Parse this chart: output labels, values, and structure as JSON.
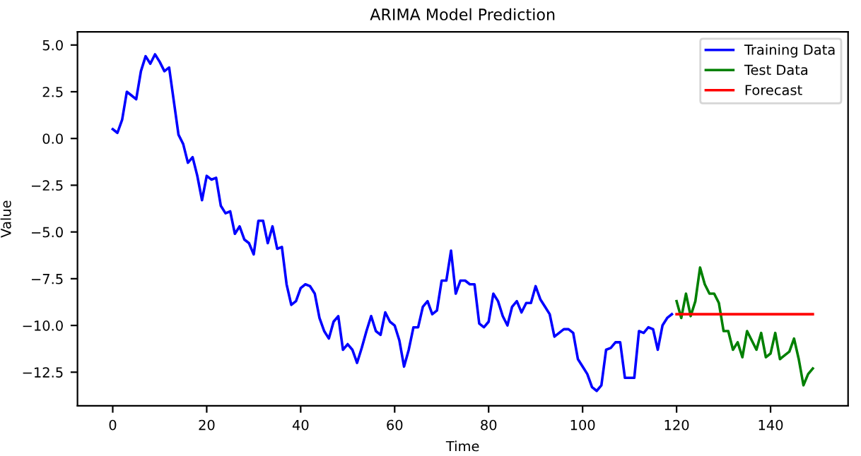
{
  "chart_data": {
    "type": "line",
    "title": "ARIMA Model Prediction",
    "xlabel": "Time",
    "ylabel": "Value",
    "xlim": [
      -7.5,
      156.5
    ],
    "ylim": [
      -14.3,
      5.7
    ],
    "xticks": [
      0,
      20,
      40,
      60,
      80,
      100,
      120,
      140
    ],
    "yticks": [
      {
        "value": -12.5,
        "label": "−12.5"
      },
      {
        "value": -10,
        "label": "−10.0"
      },
      {
        "value": -7.5,
        "label": "−7.5"
      },
      {
        "value": -5,
        "label": "−5.0"
      },
      {
        "value": -2.5,
        "label": "−2.5"
      },
      {
        "value": 0,
        "label": "0.0"
      },
      {
        "value": 2.5,
        "label": "2.5"
      },
      {
        "value": 5,
        "label": "5.0"
      }
    ],
    "grid": false,
    "legend": "top right",
    "line_style": "solid",
    "series": [
      {
        "name": "Training Data",
        "color": "#0000ff",
        "x": [
          0,
          1,
          2,
          3,
          4,
          5,
          6,
          7,
          8,
          9,
          10,
          11,
          12,
          13,
          14,
          15,
          16,
          17,
          18,
          19,
          20,
          21,
          22,
          23,
          24,
          25,
          26,
          27,
          28,
          29,
          30,
          31,
          32,
          33,
          34,
          35,
          36,
          37,
          38,
          39,
          40,
          41,
          42,
          43,
          44,
          45,
          46,
          47,
          48,
          49,
          50,
          51,
          52,
          53,
          54,
          55,
          56,
          57,
          58,
          59,
          60,
          61,
          62,
          63,
          64,
          65,
          66,
          67,
          68,
          69,
          70,
          71,
          72,
          73,
          74,
          75,
          76,
          77,
          78,
          79,
          80,
          81,
          82,
          83,
          84,
          85,
          86,
          87,
          88,
          89,
          90,
          91,
          92,
          93,
          94,
          95,
          96,
          97,
          98,
          99,
          100,
          101,
          102,
          103,
          104,
          105,
          106,
          107,
          108,
          109,
          110,
          111,
          112,
          113,
          114,
          115,
          116,
          117,
          118,
          119
        ],
        "values": [
          0.5,
          0.3,
          1.0,
          2.5,
          2.3,
          2.1,
          3.6,
          4.4,
          4.0,
          4.5,
          4.1,
          3.6,
          3.8,
          2.0,
          0.2,
          -0.3,
          -1.3,
          -1.0,
          -2.0,
          -3.3,
          -2.0,
          -2.2,
          -2.1,
          -3.6,
          -4.0,
          -3.9,
          -5.1,
          -4.7,
          -5.4,
          -5.6,
          -6.2,
          -4.4,
          -4.4,
          -5.6,
          -4.7,
          -5.9,
          -5.8,
          -7.8,
          -8.9,
          -8.7,
          -8.0,
          -7.8,
          -7.9,
          -8.3,
          -9.6,
          -10.3,
          -10.7,
          -9.8,
          -9.5,
          -11.3,
          -11.0,
          -11.3,
          -12.0,
          -11.2,
          -10.3,
          -9.5,
          -10.3,
          -10.5,
          -9.3,
          -9.8,
          -10.0,
          -10.8,
          -12.2,
          -11.3,
          -10.1,
          -10.1,
          -9.0,
          -8.7,
          -9.4,
          -9.2,
          -7.6,
          -7.6,
          -6.0,
          -8.3,
          -7.6,
          -7.6,
          -7.8,
          -7.8,
          -9.9,
          -10.1,
          -9.8,
          -8.3,
          -8.7,
          -9.5,
          -10.0,
          -9.0,
          -8.7,
          -9.3,
          -8.8,
          -8.8,
          -7.9,
          -8.6,
          -9.0,
          -9.4,
          -10.6,
          -10.4,
          -10.2,
          -10.2,
          -10.4,
          -11.8,
          -12.2,
          -12.6,
          -13.3,
          -13.5,
          -13.2,
          -11.3,
          -11.2,
          -10.9,
          -10.9,
          -12.8,
          -12.8,
          -12.8,
          -10.3,
          -10.4,
          -10.1,
          -10.2,
          -11.3,
          -10.0,
          -9.6,
          -9.4
        ]
      },
      {
        "name": "Test Data",
        "color": "#008000",
        "x": [
          120,
          121,
          122,
          123,
          124,
          125,
          126,
          127,
          128,
          129,
          130,
          131,
          132,
          133,
          134,
          135,
          136,
          137,
          138,
          139,
          140,
          141,
          142,
          143,
          144,
          145,
          146,
          147,
          148,
          149
        ],
        "values": [
          -8.7,
          -9.6,
          -8.3,
          -9.5,
          -8.7,
          -6.9,
          -7.8,
          -8.3,
          -8.3,
          -8.8,
          -10.3,
          -10.3,
          -11.3,
          -10.9,
          -11.7,
          -10.3,
          -10.8,
          -11.3,
          -10.4,
          -11.7,
          -11.5,
          -10.4,
          -11.8,
          -11.6,
          -11.4,
          -10.7,
          -11.8,
          -13.2,
          -12.6,
          -12.3
        ]
      },
      {
        "name": "Forecast",
        "color": "#ff0000",
        "x": [
          120,
          121,
          122,
          123,
          124,
          125,
          126,
          127,
          128,
          129,
          130,
          131,
          132,
          133,
          134,
          135,
          136,
          137,
          138,
          139,
          140,
          141,
          142,
          143,
          144,
          145,
          146,
          147,
          148,
          149
        ],
        "values": [
          -9.4,
          -9.4,
          -9.4,
          -9.4,
          -9.4,
          -9.4,
          -9.4,
          -9.4,
          -9.4,
          -9.4,
          -9.4,
          -9.4,
          -9.4,
          -9.4,
          -9.4,
          -9.4,
          -9.4,
          -9.4,
          -9.4,
          -9.4,
          -9.4,
          -9.4,
          -9.4,
          -9.4,
          -9.4,
          -9.4,
          -9.4,
          -9.4,
          -9.4,
          -9.4
        ]
      }
    ]
  }
}
